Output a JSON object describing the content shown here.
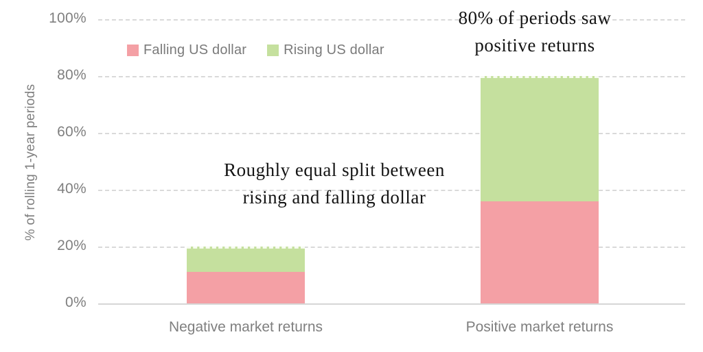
{
  "chart_data": {
    "type": "bar",
    "stacked": true,
    "title": "",
    "xlabel": "",
    "ylabel": "% of rolling 1-year periods",
    "categories": [
      "Negative market returns",
      "Positive market returns"
    ],
    "series": [
      {
        "name": "Falling US dollar",
        "color": "#f4a0a5",
        "values": [
          11,
          36
        ]
      },
      {
        "name": "Rising US dollar",
        "color": "#c5e09e",
        "values": [
          9,
          44
        ]
      }
    ],
    "totals": [
      20,
      80
    ],
    "ylim": [
      0,
      100
    ],
    "yticks": [
      0,
      20,
      40,
      60,
      80,
      100
    ],
    "ytick_labels": [
      "0%",
      "20%",
      "40%",
      "60%",
      "80%",
      "100%"
    ],
    "grid": "horizontal-dashed",
    "legend_position": "top-left-inside"
  },
  "annotations": [
    {
      "id": "positive-returns",
      "lines": [
        "80% of periods saw",
        "positive returns"
      ]
    },
    {
      "id": "equal-split",
      "lines": [
        "Roughly equal split between",
        "rising and falling dollar"
      ]
    }
  ],
  "colors": {
    "falling_us_dollar": "#f4a0a5",
    "rising_us_dollar": "#c5e09e",
    "axis_text": "#7f7f7f",
    "gridline": "#d9d9d9",
    "axis_line": "#d6d6d6",
    "annotation_text": "#141414",
    "background": "#ffffff"
  }
}
